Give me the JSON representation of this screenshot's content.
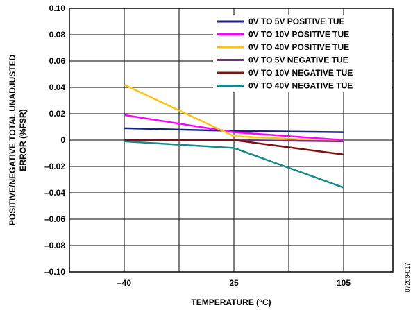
{
  "chart_data": {
    "type": "line",
    "categories": [
      "–40",
      "25",
      "105"
    ],
    "xlabel": "TEMPERATURE (°C)",
    "ylabel_lines": [
      "POSITIVE/NEGATIVE TOTAL UNADJUSTED",
      "ERROR (%FSR)"
    ],
    "ylim": [
      -0.1,
      0.1
    ],
    "yticks": [
      "–0.10",
      "–0.08",
      "–0.06",
      "–0.04",
      "–0.02",
      "0",
      "0.02",
      "0.04",
      "0.06",
      "0.08",
      "0.10"
    ],
    "grid": true,
    "legend_position": "top-right",
    "series": [
      {
        "name": "0V TO 5V POSITIVE TUE",
        "color": "#1a237e",
        "values": [
          0.009,
          0.007,
          0.006
        ]
      },
      {
        "name": "0V TO 10V POSITIVE TUE",
        "color": "#ff00ff",
        "values": [
          0.019,
          0.006,
          0.0
        ]
      },
      {
        "name": "0V TO 40V POSITIVE TUE",
        "color": "#ffc20e",
        "values": [
          0.042,
          0.003,
          -0.001
        ]
      },
      {
        "name": "0V TO 5V NEGATIVE TUE",
        "color": "#7b2b83",
        "values": [
          0.0,
          0.0,
          -0.001
        ]
      },
      {
        "name": "0V TO 10V NEGATIVE TUE",
        "color": "#7f1010",
        "values": [
          0.0,
          0.0,
          -0.011
        ]
      },
      {
        "name": "0V TO 40V NEGATIVE TUE",
        "color": "#168a8a",
        "values": [
          -0.001,
          -0.006,
          -0.036
        ]
      }
    ]
  },
  "figure_id": "07269-017"
}
